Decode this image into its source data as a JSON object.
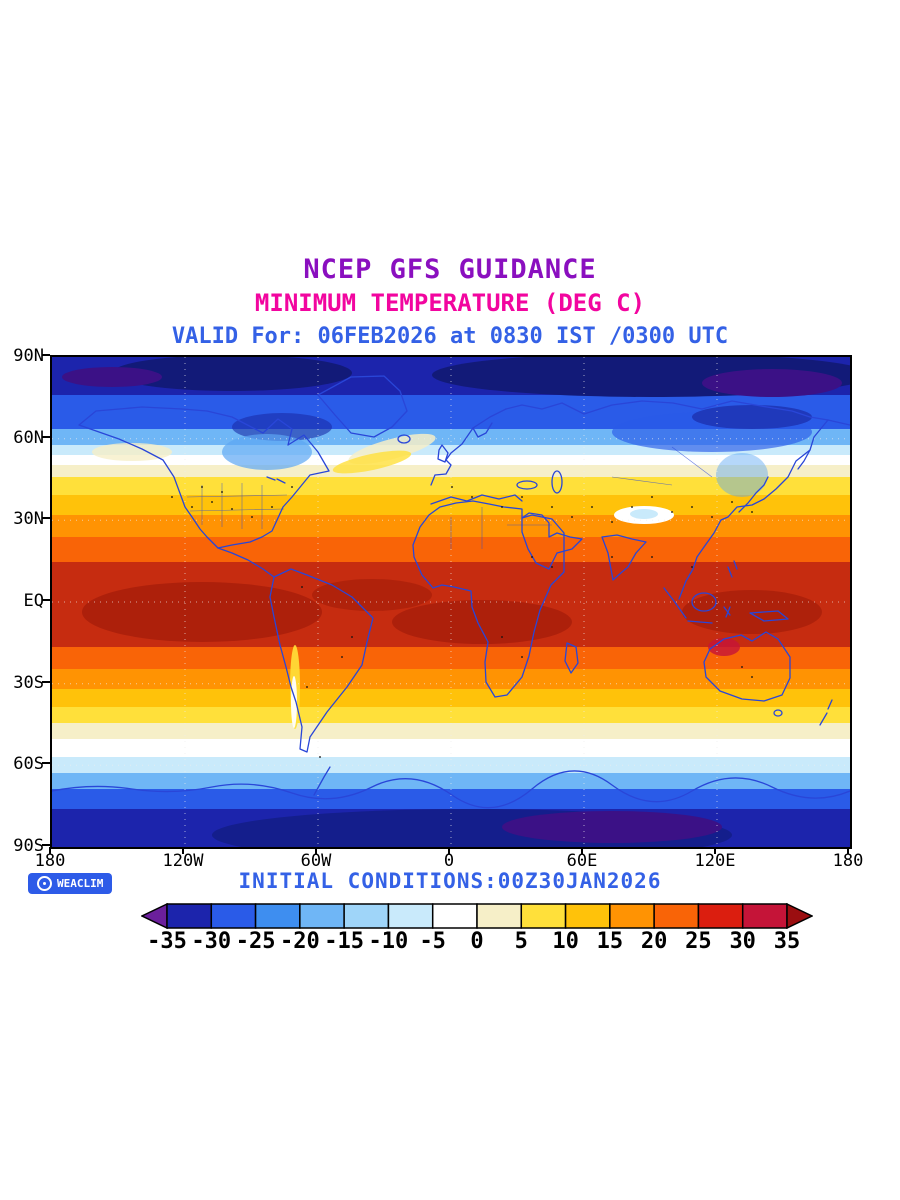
{
  "titles": {
    "line1": "NCEP GFS GUIDANCE",
    "line2": "MINIMUM TEMPERATURE (DEG C)",
    "line3": "VALID For: 06FEB2026 at 0830 IST /0300 UTC"
  },
  "title_colors": {
    "line1": "#8A0FBF",
    "line2": "#F2059F",
    "line3": "#3461E6"
  },
  "axes": {
    "y_labels": [
      "90N",
      "60N",
      "30N",
      "EQ",
      "30S",
      "60S",
      "90S"
    ],
    "x_labels": [
      "180",
      "120W",
      "60W",
      "0",
      "60E",
      "120E",
      "180"
    ]
  },
  "colorbar": {
    "tick_labels": [
      "-35",
      "-30",
      "-25",
      "-20",
      "-15",
      "-10",
      "-5",
      "0",
      "5",
      "10",
      "15",
      "20",
      "25",
      "30",
      "35"
    ],
    "segment_colors": [
      "#1C24AC",
      "#2A5BE8",
      "#3E8EF0",
      "#6FB6F6",
      "#9FD5F9",
      "#C9EAFB",
      "#FFFFFF",
      "#F6EFC8",
      "#FFE03A",
      "#FFC20A",
      "#FF9303",
      "#F96407",
      "#DB1E0F",
      "#C51438"
    ],
    "left_arrow_color": "#6B1F9C",
    "right_arrow_color": "#9B0E10"
  },
  "footer": {
    "initial_conditions": "INITIAL CONDITIONS:00Z30JAN2026",
    "initial_conditions_color": "#3461E6",
    "logo_text": "WEACLIM",
    "logo_bg": "#2D5BE8"
  }
}
